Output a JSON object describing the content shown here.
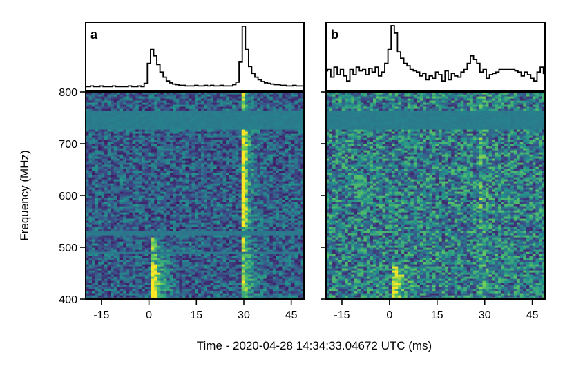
{
  "figure": {
    "x_axis_title": "Time - 2020-04-28 14:34:33.04672 UTC (ms)",
    "y_axis_title": "Frequency (MHz)"
  },
  "chart_data": [
    {
      "type": "line",
      "panel": "a",
      "title": "",
      "profile_x_ms": [
        -20,
        -19,
        -18,
        -17,
        -16,
        -15,
        -14,
        -13,
        -12,
        -11,
        -10,
        -9,
        -8,
        -7,
        -6,
        -5,
        -4,
        -3,
        -2,
        -1,
        0,
        1,
        2,
        3,
        4,
        5,
        6,
        7,
        8,
        9,
        10,
        11,
        12,
        13,
        14,
        15,
        16,
        17,
        18,
        19,
        20,
        21,
        22,
        23,
        24,
        25,
        26,
        27,
        28,
        29,
        30,
        31,
        32,
        33,
        34,
        35,
        36,
        37,
        38,
        39,
        40,
        41,
        42,
        43,
        44,
        45,
        46,
        47,
        48,
        49
      ],
      "profile_y": [
        0.03,
        0.03,
        0.04,
        0.03,
        0.03,
        0.04,
        0.03,
        0.03,
        0.03,
        0.04,
        0.03,
        0.03,
        0.03,
        0.03,
        0.04,
        0.03,
        0.03,
        0.04,
        0.03,
        0.08,
        0.4,
        0.62,
        0.52,
        0.38,
        0.26,
        0.18,
        0.12,
        0.09,
        0.07,
        0.06,
        0.05,
        0.05,
        0.04,
        0.04,
        0.04,
        0.05,
        0.04,
        0.04,
        0.05,
        0.04,
        0.05,
        0.04,
        0.04,
        0.05,
        0.04,
        0.04,
        0.04,
        0.06,
        0.1,
        0.42,
        0.99,
        0.62,
        0.35,
        0.24,
        0.18,
        0.14,
        0.11,
        0.09,
        0.08,
        0.07,
        0.06,
        0.06,
        0.05,
        0.05,
        0.04,
        0.04,
        0.05,
        0.04,
        0.04,
        0.04
      ],
      "x_range_ms": [
        -20,
        49
      ],
      "freq_range_MHz": [
        400,
        800
      ],
      "x_ticks": [
        -15,
        0,
        15,
        30,
        45
      ],
      "y_ticks": [
        400,
        500,
        600,
        700,
        800
      ],
      "bursts": [
        {
          "t_ms": 1.5,
          "bright_below_MHz": 520,
          "notes": "brightest 400–470 MHz"
        },
        {
          "t_ms": 30.0,
          "bright_below_MHz": 800,
          "notes": "broadband, brightest 550–730 MHz"
        }
      ],
      "colormap": [
        "#440154",
        "#3b528b",
        "#21918c",
        "#5ec962",
        "#fde725"
      ]
    },
    {
      "type": "line",
      "panel": "b",
      "title": "",
      "profile_x_ms": [
        -20,
        -19,
        -18,
        -17,
        -16,
        -15,
        -14,
        -13,
        -12,
        -11,
        -10,
        -9,
        -8,
        -7,
        -6,
        -5,
        -4,
        -3,
        -2,
        -1,
        0,
        1,
        2,
        3,
        4,
        5,
        6,
        7,
        8,
        9,
        10,
        11,
        12,
        13,
        14,
        15,
        16,
        17,
        18,
        19,
        20,
        21,
        22,
        23,
        24,
        25,
        26,
        27,
        28,
        29,
        30,
        31,
        32,
        33,
        34,
        35,
        36,
        37,
        38,
        39,
        40,
        41,
        42,
        43,
        44,
        45,
        46,
        47,
        48,
        49
      ],
      "profile_y": [
        0.28,
        0.3,
        0.18,
        0.34,
        0.22,
        0.3,
        0.2,
        0.12,
        0.3,
        0.22,
        0.34,
        0.28,
        0.3,
        0.22,
        0.32,
        0.26,
        0.34,
        0.2,
        0.26,
        0.4,
        0.62,
        1.0,
        0.88,
        0.58,
        0.48,
        0.4,
        0.36,
        0.3,
        0.28,
        0.26,
        0.2,
        0.24,
        0.14,
        0.2,
        0.16,
        0.26,
        0.22,
        0.12,
        0.28,
        0.14,
        0.24,
        0.2,
        0.18,
        0.26,
        0.3,
        0.4,
        0.52,
        0.46,
        0.4,
        0.26,
        0.3,
        0.16,
        0.22,
        0.24,
        0.26,
        0.3,
        0.3,
        0.3,
        0.3,
        0.3,
        0.28,
        0.26,
        0.2,
        0.26,
        0.22,
        0.16,
        0.12,
        0.26,
        0.34,
        0.24
      ],
      "x_range_ms": [
        -20,
        49
      ],
      "freq_range_MHz": [
        400,
        800
      ],
      "x_ticks": [
        -15,
        0,
        15,
        30,
        45
      ],
      "y_ticks": [
        400,
        500,
        600,
        700,
        800
      ],
      "bursts": [
        {
          "t_ms": 1.5,
          "bright_below_MHz": 470,
          "notes": "brightest 400–460 MHz"
        },
        {
          "t_ms": 29.0,
          "bright_below_MHz": 800,
          "notes": "faint broadband"
        }
      ],
      "colormap": [
        "#440154",
        "#3b528b",
        "#21918c",
        "#5ec962",
        "#fde725"
      ]
    }
  ]
}
